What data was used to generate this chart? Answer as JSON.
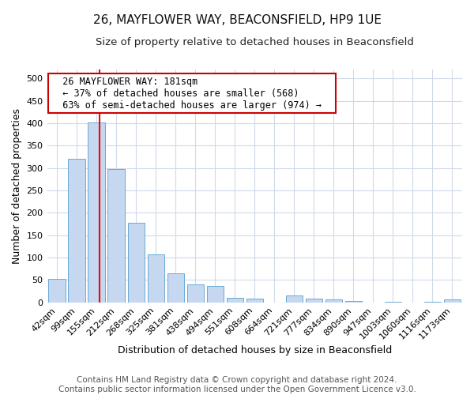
{
  "title": "26, MAYFLOWER WAY, BEACONSFIELD, HP9 1UE",
  "subtitle": "Size of property relative to detached houses in Beaconsfield",
  "xlabel": "Distribution of detached houses by size in Beaconsfield",
  "ylabel": "Number of detached properties",
  "categories": [
    "42sqm",
    "99sqm",
    "155sqm",
    "212sqm",
    "268sqm",
    "325sqm",
    "381sqm",
    "438sqm",
    "494sqm",
    "551sqm",
    "608sqm",
    "664sqm",
    "721sqm",
    "777sqm",
    "834sqm",
    "890sqm",
    "947sqm",
    "1003sqm",
    "1060sqm",
    "1116sqm",
    "1173sqm"
  ],
  "values": [
    53,
    320,
    402,
    297,
    177,
    108,
    65,
    40,
    36,
    10,
    9,
    0,
    15,
    9,
    6,
    3,
    0,
    1,
    0,
    1,
    6
  ],
  "bar_color": "#c5d8ef",
  "bar_edge_color": "#6aaad4",
  "red_line_x": 2.15,
  "annotation_text": "  26 MAYFLOWER WAY: 181sqm  \n  ← 37% of detached houses are smaller (568)  \n  63% of semi-detached houses are larger (974) →  ",
  "annotation_box_color": "#ffffff",
  "annotation_box_edge": "#cc0000",
  "ylim": [
    0,
    520
  ],
  "yticks": [
    0,
    50,
    100,
    150,
    200,
    250,
    300,
    350,
    400,
    450,
    500
  ],
  "footer": "Contains HM Land Registry data © Crown copyright and database right 2024.\nContains public sector information licensed under the Open Government Licence v3.0.",
  "background_color": "#ffffff",
  "grid_color": "#d0daea",
  "title_fontsize": 11,
  "subtitle_fontsize": 9.5,
  "axis_label_fontsize": 9,
  "tick_fontsize": 8,
  "footer_fontsize": 7.5,
  "annotation_fontsize": 8.5
}
